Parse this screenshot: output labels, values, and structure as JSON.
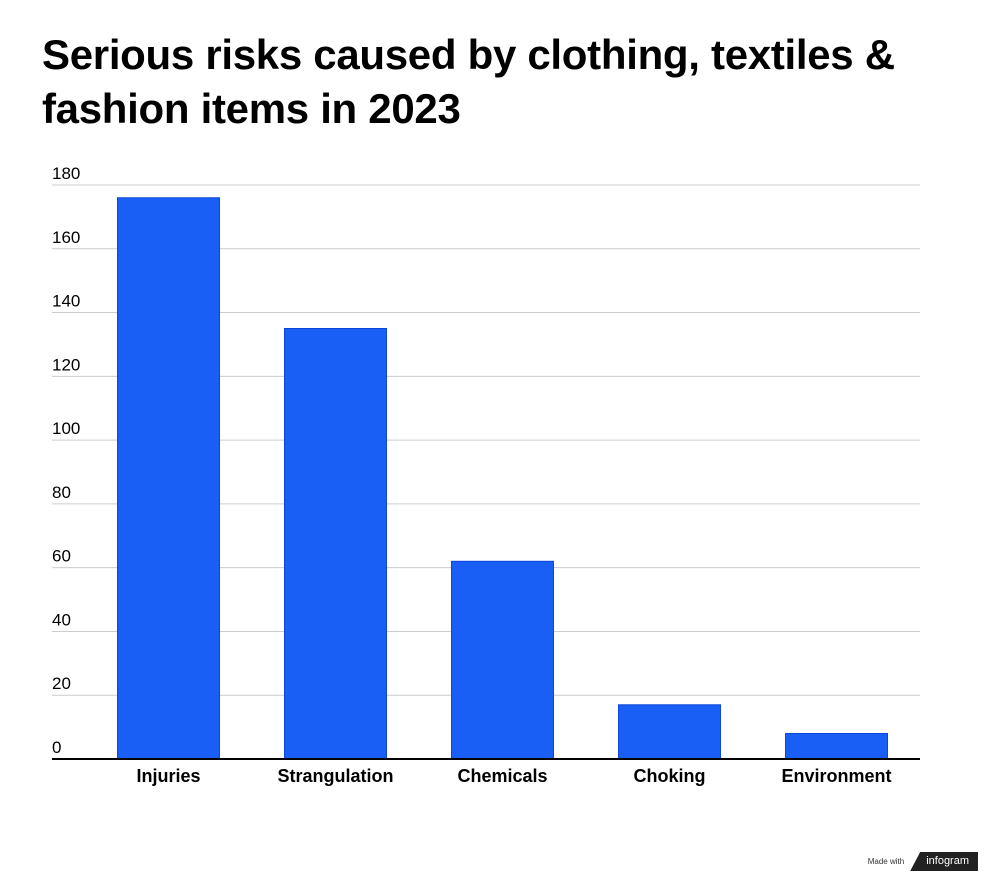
{
  "chart_data": {
    "type": "bar",
    "title": "Serious risks caused by clothing, textiles & fashion items in 2023",
    "categories": [
      "Injuries",
      "Strangulation",
      "Chemicals",
      "Choking",
      "Environment"
    ],
    "values": [
      176,
      135,
      62,
      17,
      8
    ],
    "ylim": [
      0,
      180
    ],
    "yticks": [
      0,
      20,
      40,
      60,
      80,
      100,
      120,
      140,
      160,
      180
    ],
    "xlabel": "",
    "ylabel": "",
    "grid": true,
    "bar_color": "#1a5ff5"
  },
  "footer": {
    "made_with": "Made with",
    "brand": "infogram"
  }
}
